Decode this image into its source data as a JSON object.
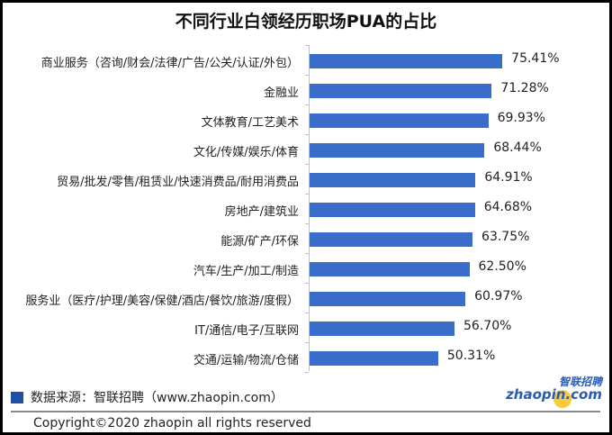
{
  "chart_data": {
    "type": "bar",
    "orientation": "horizontal",
    "title": "不同行业白领经历职场PUA的占比",
    "xlabel": "",
    "ylabel": "",
    "xlim": [
      0,
      100
    ],
    "grid": false,
    "legend_position": "bottom-left",
    "categories": [
      "商业服务（咨询/财会/法律/广告/公关/认证/外包）",
      "金融业",
      "文体教育/工艺美术",
      "文化/传媒/娱乐/体育",
      "贸易/批发/零售/租赁业/快速消费品/耐用消费品",
      "房地产/建筑业",
      "能源/矿产/环保",
      "汽车/生产/加工/制造",
      "服务业（医疗/护理/美容/保健/酒店/餐饮/旅游/度假）",
      "IT/通信/电子/互联网",
      "交通/运输/物流/仓储"
    ],
    "values": [
      75.41,
      71.28,
      69.93,
      68.44,
      64.91,
      64.68,
      63.75,
      62.5,
      60.97,
      56.7,
      50.31
    ],
    "value_labels": [
      "75.41%",
      "71.28%",
      "69.93%",
      "68.44%",
      "64.91%",
      "64.68%",
      "63.75%",
      "62.50%",
      "60.97%",
      "56.70%",
      "50.31%"
    ],
    "bar_color": "#3a6cc9"
  },
  "footer": {
    "legend_text": "数据来源：智联招聘（www.zhaopin.com）",
    "legend_color": "#1f4fa8",
    "logo_cn": "智联招聘",
    "logo_en": "zhaopin.com",
    "copyright": "Copyright©2020 zhaopin all rights reserved"
  }
}
